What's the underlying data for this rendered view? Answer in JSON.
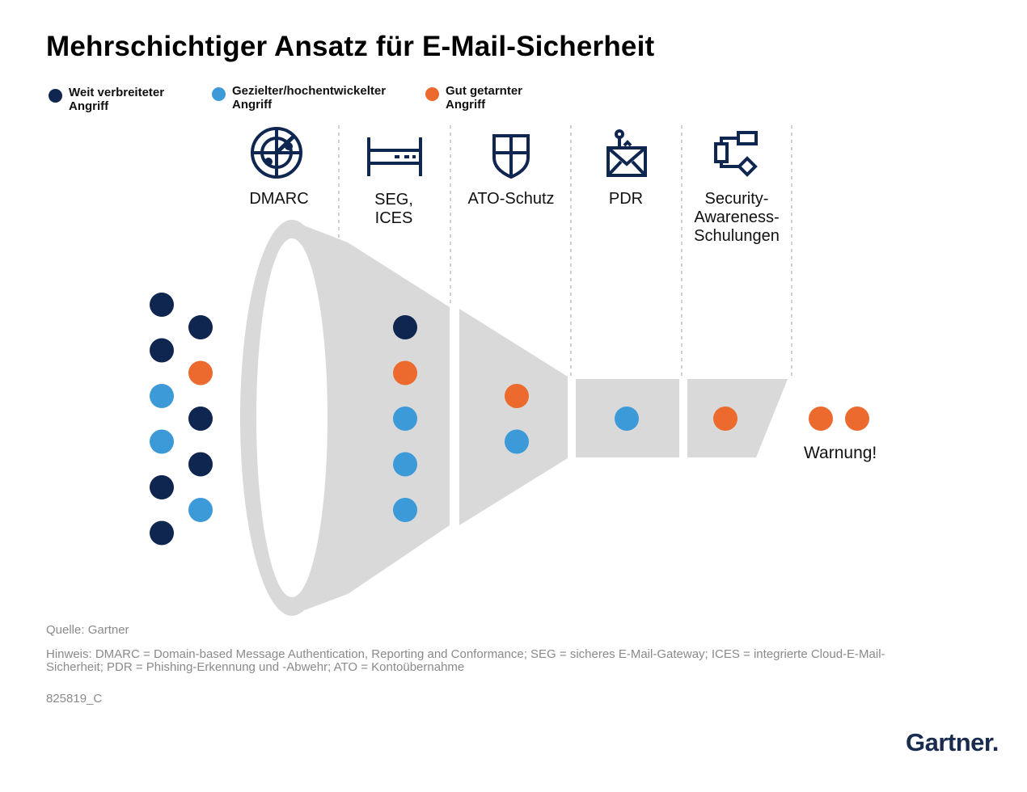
{
  "title": "Mehrschichtiger Ansatz für E-Mail-Sicherheit",
  "legend": [
    {
      "label": "Weit verbreiteter Angriff",
      "color": "#0f2650"
    },
    {
      "label": "Gezielter/hochentwickelter Angriff",
      "color": "#3d9ad9"
    },
    {
      "label": "Gut getarnter Angriff",
      "color": "#ec6a2e"
    }
  ],
  "stages": [
    {
      "label": "DMARC",
      "icon": "radar-icon"
    },
    {
      "label": "SEG,\nICES",
      "icon": "gateway-icon"
    },
    {
      "label": "ATO-Schutz",
      "icon": "shield-icon"
    },
    {
      "label": "PDR",
      "icon": "mail-alert-icon"
    },
    {
      "label": "Security-\nAwareness-\nSchulungen",
      "icon": "flowchart-icon"
    }
  ],
  "attack_groups": {
    "incoming_col1": [
      "weit",
      "weit",
      "gezielt",
      "gezielt",
      "weit",
      "weit"
    ],
    "incoming_col2": [
      "weit",
      "getarnt",
      "weit",
      "weit",
      "gezielt"
    ],
    "after_dmarc": [
      "weit",
      "getarnt",
      "gezielt",
      "gezielt",
      "gezielt"
    ],
    "after_seg": [
      "getarnt",
      "gezielt"
    ],
    "after_ato": [
      "gezielt"
    ],
    "after_pdr": [
      "getarnt"
    ],
    "escaped": [
      "getarnt",
      "getarnt"
    ]
  },
  "warning": "Warnung!",
  "source": "Quelle: Gartner",
  "note": "Hinweis: DMARC = Domain-based Message Authentication, Reporting and Conformance; SEG = sicheres E-Mail-Gateway; ICES = integrierte Cloud-E-Mail-Sicherheit; PDR = Phishing-Erkennung und -Abwehr; ATO = Kontoübernahme",
  "doc_id": "825819_C",
  "logo": "Gartner."
}
